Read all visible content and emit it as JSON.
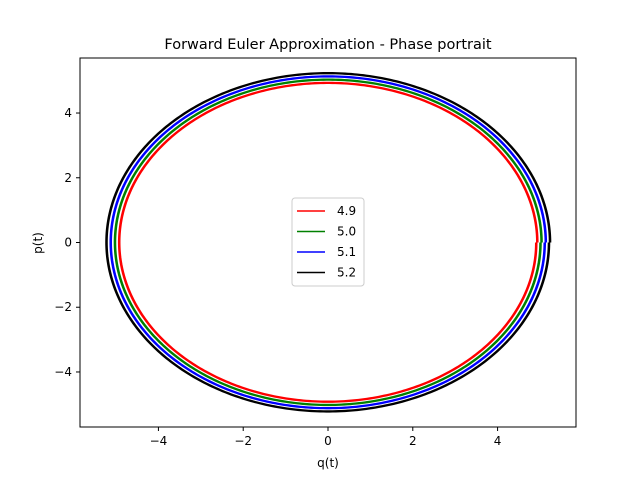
{
  "chart_data": {
    "type": "line",
    "title": "Forward Euler Approximation - Phase portrait",
    "xlabel": "q(t)",
    "ylabel": "p(t)",
    "xlim": [
      -5.85,
      5.85
    ],
    "ylim": [
      -5.7,
      5.7
    ],
    "xticks": [
      -4,
      -2,
      0,
      2,
      4
    ],
    "yticks": [
      -4,
      -2,
      0,
      2,
      4
    ],
    "xtick_labels": [
      "−4",
      "−2",
      "0",
      "2",
      "4"
    ],
    "ytick_labels": [
      "−4",
      "−2",
      "0",
      "2",
      "4"
    ],
    "grid": false,
    "legend_position": "center",
    "series": [
      {
        "name": "4.9",
        "color": "#ff0000",
        "radius_start": 4.9,
        "radius_end": 4.95,
        "turns": 2
      },
      {
        "name": "5.0",
        "color": "#008000",
        "radius_start": 5.0,
        "radius_end": 5.05,
        "turns": 2
      },
      {
        "name": "5.1",
        "color": "#0000ff",
        "radius_start": 5.1,
        "radius_end": 5.15,
        "turns": 2
      },
      {
        "name": "5.2",
        "color": "#000000",
        "radius_start": 5.2,
        "radius_end": 5.25,
        "turns": 2
      }
    ]
  }
}
